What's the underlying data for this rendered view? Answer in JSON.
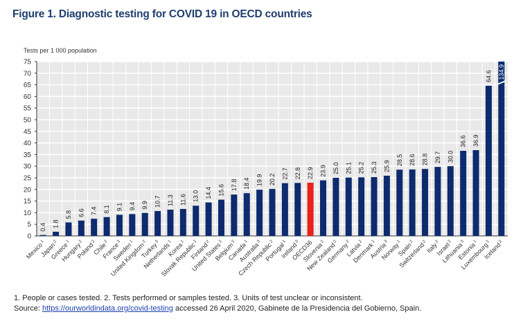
{
  "title": "Figure 1. Diagnostic testing for COVID 19 in OECD countries",
  "chart_data": {
    "type": "bar",
    "ylabel": "Tests per 1 000 population",
    "ylim": [
      0,
      75
    ],
    "yticks": [
      0,
      5,
      10,
      15,
      20,
      25,
      30,
      35,
      40,
      45,
      50,
      55,
      60,
      65,
      70,
      75
    ],
    "grid": true,
    "categories": [
      "Mexico",
      "Japan",
      "Greece",
      "Hungary",
      "Poland",
      "Chile",
      "France",
      "Sweden",
      "United Kingdom",
      "Turkey",
      "Netherlands",
      "Korea",
      "Slovak Republic",
      "Finland",
      "United States",
      "Belgium",
      "Canada",
      "Australia",
      "Czech Republic",
      "Portugal",
      "Ireland",
      "OECD36",
      "Slovenia",
      "New Zealand",
      "Germany",
      "Latvia",
      "Denmark",
      "Austria",
      "Norway",
      "Spain",
      "Switzerland",
      "Italy",
      "Israel",
      "Lithuania",
      "Estonia",
      "Luxembourg",
      "Iceland"
    ],
    "footnote_marks": [
      "1",
      "2",
      "1",
      "2",
      "2",
      "2",
      "3",
      "1",
      "2",
      "3",
      "1",
      "1",
      "2",
      "2",
      "2",
      "2",
      "1",
      "3",
      "2",
      "1",
      "3",
      "",
      "2",
      "2",
      "2",
      "2",
      "1",
      "3",
      "1",
      "2",
      "2",
      "2",
      "2",
      "3",
      "1",
      "1",
      "2"
    ],
    "values": [
      0.4,
      1.8,
      5.8,
      6.6,
      7.4,
      8.1,
      9.1,
      9.4,
      9.9,
      10.7,
      11.3,
      11.6,
      13.0,
      14.4,
      15.6,
      17.8,
      18.4,
      19.9,
      20.2,
      22.7,
      22.8,
      22.9,
      23.9,
      25.0,
      25.1,
      25.2,
      25.3,
      25.9,
      28.5,
      28.6,
      28.8,
      29.7,
      30.0,
      36.6,
      36.9,
      64.6,
      134.9
    ],
    "value_labels": [
      "0.4",
      "1.8",
      "5.8",
      "6.6",
      "7.4",
      "8.1",
      "9.1",
      "9.4",
      "9.9",
      "10.7",
      "11.3",
      "11.6",
      "13.0",
      "14.4",
      "15.6",
      "17.8",
      "18.4",
      "19.9",
      "20.2",
      "22.7",
      "22.8",
      "22.9",
      "23.9",
      "25.0",
      "25.1",
      "25.2",
      "25.3",
      "25.9",
      "28.5",
      "28.6",
      "28.8",
      "29.7",
      "30.0",
      "36.6",
      "36.9",
      "64.6",
      "134.9"
    ],
    "highlight_category": "OECD36",
    "colors": {
      "bar": "#0d2b6e",
      "highlight": "#e8221c",
      "plot_bg": "#e9e9e9",
      "grid": "#ffffff"
    }
  },
  "notes": {
    "footnotes": "1. People or cases tested. 2. Tests performed or samples tested. 3. Units of test unclear or inconsistent.",
    "source_prefix": "Source: ",
    "source_link": "https://ourworldindata.org/covid-testing",
    "source_suffix": " accessed 26 April 2020, Gabinete de la Presidencia del Gobierno, Spain."
  }
}
